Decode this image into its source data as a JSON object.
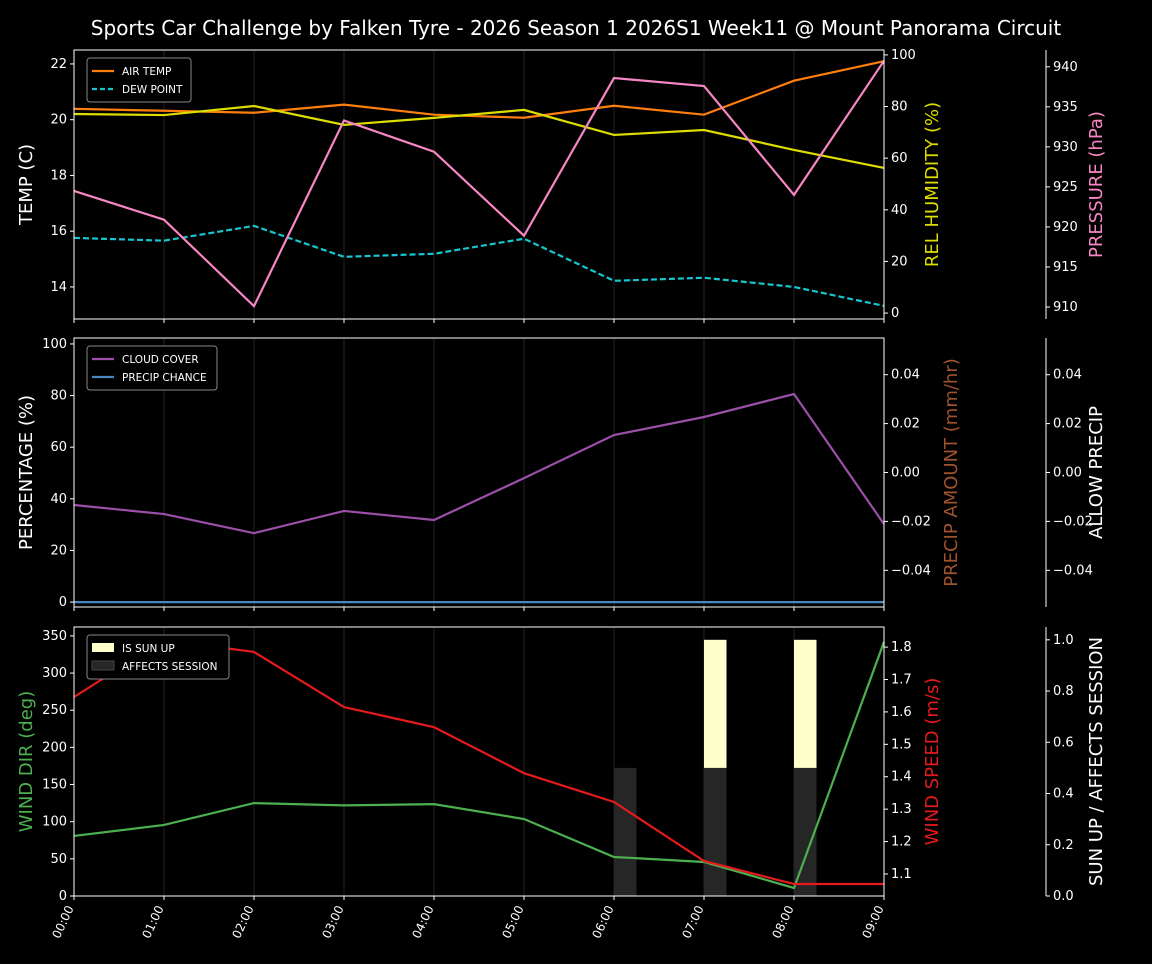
{
  "title": "Sports Car Challenge by Falken Tyre - 2026 Season 1 2026S1 Week11 @ Mount Panorama Circuit",
  "chart_data": [
    {
      "type": "line",
      "x": [
        "00:00",
        "01:00",
        "02:00",
        "03:00",
        "04:00",
        "05:00",
        "06:00",
        "07:00",
        "08:00",
        "09:00"
      ],
      "grid": "vertical",
      "legend": "top-left",
      "axes": [
        {
          "side": "left",
          "label": "TEMP (C)",
          "color": "#ffffff",
          "ylim": [
            12.85,
            22.5
          ],
          "ticks": [
            14,
            16,
            18,
            20,
            22
          ]
        },
        {
          "side": "right",
          "label": "REL HUMIDITY (%)",
          "color": "#dddd00",
          "ylim": [
            -2.3,
            101.9
          ],
          "ticks": [
            0,
            20,
            40,
            60,
            80,
            100
          ]
        },
        {
          "side": "right2",
          "label": "PRESSURE (hPa)",
          "color": "#f786c4",
          "ylim": [
            908.5,
            942.1
          ],
          "ticks": [
            910,
            915,
            920,
            925,
            930,
            935,
            940
          ]
        }
      ],
      "series": [
        {
          "name": "AIR TEMP",
          "axis": 0,
          "color": "#ff7f0e",
          "dash": false,
          "legend": true,
          "values": [
            20.39,
            20.32,
            20.25,
            20.54,
            20.18,
            20.07,
            20.5,
            20.18,
            21.4,
            22.1
          ]
        },
        {
          "name": "DEW POINT",
          "axis": 0,
          "color": "#17c6cf",
          "dash": true,
          "legend": true,
          "values": [
            15.76,
            15.66,
            16.19,
            15.08,
            15.19,
            15.73,
            14.22,
            14.33,
            14.0,
            13.32
          ]
        },
        {
          "axis": 1,
          "color": "#dddd00",
          "dash": false,
          "legend": false,
          "values": [
            77.1,
            76.7,
            80.2,
            72.9,
            75.6,
            78.7,
            69.0,
            70.9,
            63.2,
            56.2
          ]
        },
        {
          "axis": 2,
          "color": "#f786c4",
          "dash": false,
          "legend": false,
          "values": [
            924.5,
            920.9,
            910.1,
            933.3,
            929.4,
            918.9,
            938.6,
            937.6,
            924.0,
            940.75
          ]
        }
      ]
    },
    {
      "type": "line",
      "x": [
        "00:00",
        "01:00",
        "02:00",
        "03:00",
        "04:00",
        "05:00",
        "06:00",
        "07:00",
        "08:00",
        "09:00"
      ],
      "grid": "vertical",
      "legend": "top-left",
      "axes": [
        {
          "side": "left",
          "label": "PERCENTAGE (%)",
          "color": "#ffffff",
          "ylim": [
            -1.9,
            102.3
          ],
          "ticks": [
            0,
            20,
            40,
            60,
            80,
            100
          ]
        },
        {
          "side": "right",
          "label": "PRECIP AMOUNT (mm/hr)",
          "color": "#a0522d",
          "ylim": [
            -0.055,
            0.055
          ],
          "ticks": [
            -0.04,
            -0.02,
            0.0,
            0.02,
            0.04
          ],
          "tick_labels": [
            "−0.04",
            "−0.02",
            "0.00",
            "0.02",
            "0.04"
          ]
        },
        {
          "side": "right2",
          "label": "ALLOW PRECIP",
          "color": "#ffffff",
          "ylim": [
            -0.055,
            0.055
          ],
          "ticks": [
            -0.04,
            -0.02,
            0.0,
            0.02,
            0.04
          ],
          "tick_labels": [
            "−0.04",
            "−0.02",
            "0.00",
            "0.02",
            "0.04"
          ]
        }
      ],
      "series": [
        {
          "name": "CLOUD COVER",
          "axis": 0,
          "color": "#9b4fa8",
          "dash": false,
          "legend": true,
          "values": [
            37.6,
            34.1,
            26.7,
            35.3,
            31.8,
            48.0,
            64.7,
            71.7,
            80.6,
            30.2
          ]
        },
        {
          "name": "PRECIP CHANCE",
          "axis": 0,
          "color": "#4a86c0",
          "dash": false,
          "legend": true,
          "values": [
            0,
            0,
            0,
            0,
            0,
            0,
            0,
            0,
            0,
            0
          ]
        }
      ]
    },
    {
      "type": "line",
      "x": [
        "00:00",
        "01:00",
        "02:00",
        "03:00",
        "04:00",
        "05:00",
        "06:00",
        "07:00",
        "08:00",
        "09:00"
      ],
      "grid": "vertical",
      "legend": "top-left",
      "axes": [
        {
          "side": "left",
          "label": "WIND DIR (deg)",
          "color": "#4caf50",
          "ylim": [
            0,
            362
          ],
          "ticks": [
            0,
            50,
            100,
            150,
            200,
            250,
            300,
            350
          ]
        },
        {
          "side": "right",
          "label": "WIND SPEED (m/s)",
          "color": "#e41a1c",
          "ylim": [
            1.032,
            1.862
          ],
          "ticks": [
            1.1,
            1.2,
            1.3,
            1.4,
            1.5,
            1.6,
            1.7,
            1.8
          ]
        },
        {
          "side": "right2",
          "label": "SUN UP / AFFECTS SESSION",
          "color": "#ffffff",
          "ylim": [
            0,
            1.05
          ],
          "ticks": [
            0.0,
            0.2,
            0.4,
            0.6,
            0.8,
            1.0
          ]
        }
      ],
      "bars": [
        {
          "name": "IS SUN UP",
          "axis": 2,
          "color": "#ffffcc",
          "stacked_on": "AFFECTS SESSION",
          "values": [
            0,
            0,
            0,
            0,
            0,
            0,
            0,
            0.5,
            0.5,
            0
          ]
        },
        {
          "name": "AFFECTS SESSION",
          "axis": 2,
          "color": "#262626",
          "values": [
            0,
            0,
            0,
            0,
            0,
            0,
            0.5,
            0.5,
            0.5,
            0
          ]
        }
      ],
      "series": [
        {
          "axis": 0,
          "color": "#4caf50",
          "dash": false,
          "legend": false,
          "values": [
            80.8,
            95.6,
            125.0,
            122.0,
            123.6,
            103.6,
            52.5,
            45.8,
            10.8,
            341.9
          ]
        },
        {
          "axis": 1,
          "color": "#e41a1c",
          "dash": false,
          "legend": false,
          "values": [
            1.646,
            1.822,
            1.785,
            1.615,
            1.553,
            1.411,
            1.322,
            1.14,
            1.069,
            1.069
          ]
        }
      ]
    }
  ]
}
